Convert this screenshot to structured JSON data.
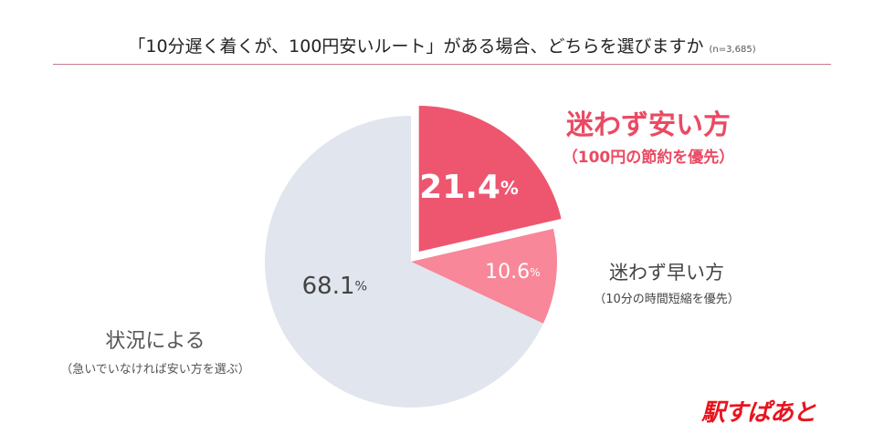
{
  "title": "「10分遅く着くが、100円安いルート」がある場合、どちらを選びますか",
  "sample_size": "(n=3,685)",
  "chart_data": {
    "type": "pie",
    "title": "「10分遅く着くが、100円安いルート」がある場合、どちらを選びますか",
    "slices": [
      {
        "name": "迷わず安い方",
        "sub": "（100円の節約を優先）",
        "value": 21.4,
        "value_label": "21.4",
        "color": "#ee566f",
        "exploded": true
      },
      {
        "name": "迷わず早い方",
        "sub": "（10分の時間短縮を優先）",
        "value": 10.6,
        "value_label": "10.6",
        "color": "#f78799",
        "exploded": false
      },
      {
        "name": "状況による",
        "sub": "（急いでいなければ安い方を選ぶ）",
        "value": 68.1,
        "value_label": "68.1",
        "color": "#e1e5ee",
        "exploded": false
      }
    ],
    "unit": "%"
  },
  "logo": "駅すぱあと"
}
